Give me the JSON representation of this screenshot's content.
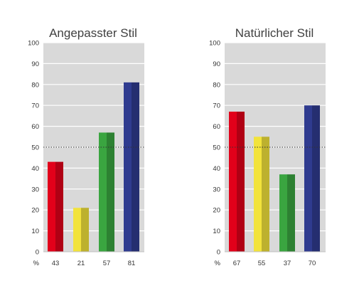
{
  "chart_data": [
    {
      "type": "bar",
      "title": "Angepasster Stil",
      "categories": [
        "",
        "",
        "",
        ""
      ],
      "values": [
        43,
        21,
        57,
        81
      ],
      "value_unit_label": "%",
      "ylim": [
        0,
        100
      ],
      "yticks": [
        0,
        10,
        20,
        30,
        40,
        50,
        60,
        70,
        80,
        90,
        100
      ],
      "reference_line": 50,
      "grid": true,
      "legend": "none",
      "colors": [
        "#e2001a",
        "#f2e33b",
        "#3aa540",
        "#2f3b8f"
      ]
    },
    {
      "type": "bar",
      "title": "Natürlicher Stil",
      "categories": [
        "",
        "",
        "",
        ""
      ],
      "values": [
        67,
        55,
        37,
        70
      ],
      "value_unit_label": "%",
      "ylim": [
        0,
        100
      ],
      "yticks": [
        0,
        10,
        20,
        30,
        40,
        50,
        60,
        70,
        80,
        90,
        100
      ],
      "reference_line": 50,
      "grid": true,
      "legend": "none",
      "colors": [
        "#e2001a",
        "#f2e33b",
        "#3aa540",
        "#2f3b8f"
      ]
    }
  ]
}
